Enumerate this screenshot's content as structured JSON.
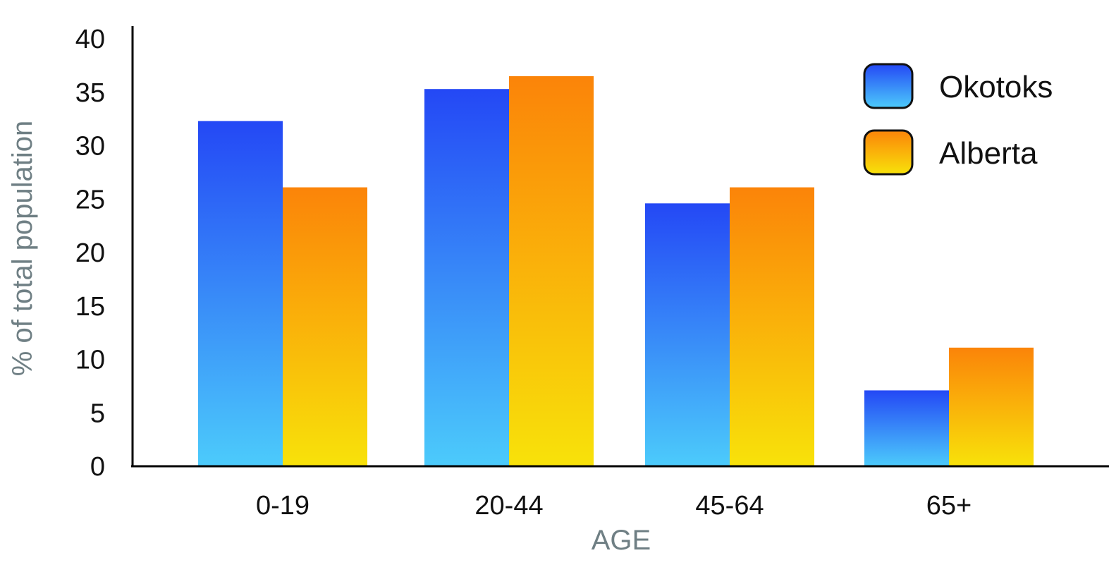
{
  "chart_data": {
    "type": "bar",
    "title": "",
    "xlabel": "AGE",
    "ylabel": "% of total population",
    "categories": [
      "0-19",
      "20-44",
      "45-64",
      "65+"
    ],
    "ylim": [
      0,
      40
    ],
    "yticks": [
      0,
      5,
      10,
      15,
      20,
      25,
      30,
      35,
      40
    ],
    "grid": false,
    "legend_position": "top-right",
    "series": [
      {
        "name": "Okotoks",
        "values": [
          32.3,
          35.3,
          24.6,
          7.1
        ],
        "color_top": "#2448f5",
        "color_bottom": "#4ccbfb"
      },
      {
        "name": "Alberta",
        "values": [
          26.1,
          36.5,
          26.1,
          11.1
        ],
        "color_top": "#fb8409",
        "color_bottom": "#f8e20a"
      }
    ]
  }
}
